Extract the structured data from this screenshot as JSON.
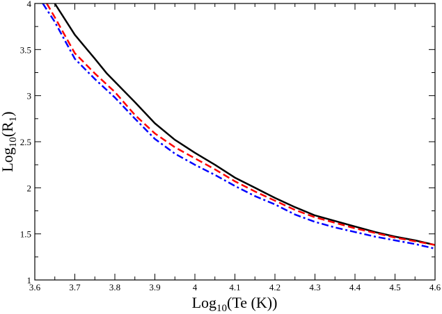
{
  "chart_data": {
    "type": "line",
    "title": "",
    "xlabel": {
      "prefix": "Log",
      "sub": "10",
      "suffix": "(Te (K))"
    },
    "ylabel": {
      "prefix": "Log",
      "sub": "10",
      "mid": "(R",
      "sub2": "1",
      "suffix": ")"
    },
    "xlim": [
      3.6,
      4.6
    ],
    "ylim": [
      1,
      4
    ],
    "xticks": [
      3.6,
      3.7,
      3.8,
      3.9,
      4.0,
      4.1,
      4.2,
      4.3,
      4.4,
      4.5,
      4.6
    ],
    "xtick_labels": [
      "3.6",
      "3.7",
      "3.8",
      "3.9",
      "4",
      "4.1",
      "4.2",
      "4.3",
      "4.4",
      "4.5",
      "4.6"
    ],
    "yticks": [
      1,
      1.5,
      2,
      2.5,
      3,
      3.5,
      4
    ],
    "ytick_labels": [
      "1",
      "1.5",
      "2",
      "2.5",
      "3",
      "3.5",
      "4"
    ],
    "grid": false,
    "legend": "none",
    "series": [
      {
        "color": "#000000",
        "style": "solid",
        "x": [
          3.65,
          3.7,
          3.75,
          3.78,
          3.85,
          3.9,
          3.95,
          4.0,
          4.05,
          4.1,
          4.15,
          4.2,
          4.25,
          4.3,
          4.35,
          4.4,
          4.45,
          4.5,
          4.55,
          4.6
        ],
        "y": [
          4.0,
          3.66,
          3.4,
          3.24,
          2.93,
          2.7,
          2.52,
          2.38,
          2.25,
          2.11,
          2.0,
          1.89,
          1.79,
          1.7,
          1.64,
          1.58,
          1.52,
          1.47,
          1.43,
          1.38
        ]
      },
      {
        "color": "#ff0000",
        "style": "dashed",
        "x": [
          3.63,
          3.65,
          3.7,
          3.75,
          3.8,
          3.85,
          3.9,
          3.95,
          4.0,
          4.05,
          4.1,
          4.15,
          4.2,
          4.25,
          4.3,
          4.35,
          4.4,
          4.45,
          4.5,
          4.55,
          4.6
        ],
        "y": [
          4.0,
          3.85,
          3.46,
          3.24,
          3.04,
          2.79,
          2.59,
          2.44,
          2.32,
          2.2,
          2.07,
          1.96,
          1.86,
          1.76,
          1.68,
          1.62,
          1.56,
          1.51,
          1.46,
          1.42,
          1.38
        ]
      },
      {
        "color": "#0000ff",
        "style": "dashdot",
        "x": [
          3.62,
          3.65,
          3.7,
          3.75,
          3.8,
          3.85,
          3.9,
          3.95,
          4.0,
          4.05,
          4.1,
          4.15,
          4.2,
          4.25,
          4.3,
          4.35,
          4.4,
          4.45,
          4.5,
          4.55,
          4.6
        ],
        "y": [
          4.0,
          3.8,
          3.4,
          3.18,
          2.98,
          2.75,
          2.53,
          2.37,
          2.25,
          2.14,
          2.02,
          1.91,
          1.82,
          1.71,
          1.63,
          1.57,
          1.52,
          1.47,
          1.43,
          1.39,
          1.34
        ]
      }
    ]
  }
}
